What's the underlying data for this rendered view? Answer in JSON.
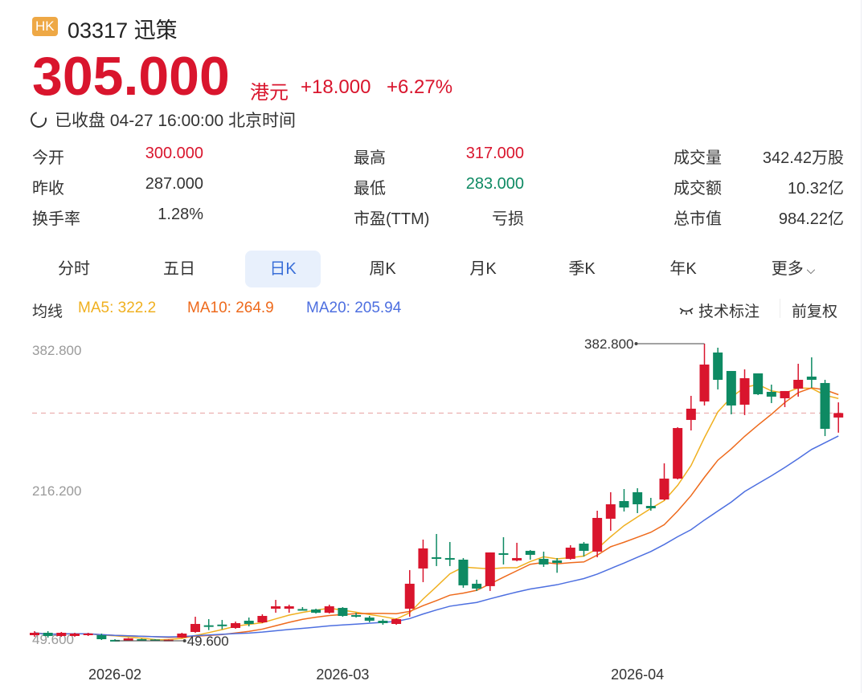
{
  "header": {
    "market_badge": "HK",
    "title": "03317 迅策",
    "price": "305.000",
    "currency": "港元",
    "change": "+18.000",
    "change_pct": "+6.27%",
    "status": "已收盘 04-27 16:00:00 北京时间"
  },
  "stats": [
    [
      {
        "label": "今开",
        "value": "300.000",
        "tone": "red"
      },
      {
        "label": "最高",
        "value": "317.000",
        "tone": "red"
      },
      {
        "label": "成交量",
        "value": "342.42万股",
        "tone": "dark"
      }
    ],
    [
      {
        "label": "昨收",
        "value": "287.000",
        "tone": "dark"
      },
      {
        "label": "最低",
        "value": "283.000",
        "tone": "green"
      },
      {
        "label": "成交额",
        "value": "10.32亿",
        "tone": "dark"
      }
    ],
    [
      {
        "label": "换手率",
        "value": "1.28%",
        "tone": "dark"
      },
      {
        "label": "市盈(TTM)",
        "value": "亏损",
        "tone": "dark"
      },
      {
        "label": "总市值",
        "value": "984.22亿",
        "tone": "dark"
      }
    ]
  ],
  "tabs": [
    "分时",
    "五日",
    "日K",
    "周K",
    "月K",
    "季K",
    "年K",
    "更多"
  ],
  "active_tab": "日K",
  "legend": {
    "title": "均线",
    "ma5": "MA5: 322.2",
    "ma10": "MA10: 264.9",
    "ma20": "MA20: 205.94",
    "annotate": "技术标注",
    "adjust": "前复权"
  },
  "colors": {
    "up": "#d9152d",
    "down": "#0e8a63",
    "ma5": "#f0b020",
    "ma10": "#ee6a1c",
    "ma20": "#4d6fe0"
  },
  "chart_data": {
    "type": "candlestick",
    "y_ticks": [
      "382.800",
      "216.200",
      "49.600"
    ],
    "ylim": [
      49.6,
      382.8
    ],
    "x_ticks": [
      "2026-02",
      "2026-03",
      "2026-04"
    ],
    "x_tick_index": [
      6,
      23,
      45
    ],
    "max_label": "382.800",
    "min_label": "49.600",
    "last_price": 305.0,
    "ohlc": [
      [
        55.9,
        58.6,
        60.4,
        54.1
      ],
      [
        58.6,
        55.0,
        60.4,
        53.2
      ],
      [
        55.0,
        58.6,
        59.5,
        54.1
      ],
      [
        55.0,
        57.7,
        58.6,
        54.1
      ],
      [
        55.9,
        57.7,
        58.6,
        55.0
      ],
      [
        55.9,
        51.4,
        57.7,
        50.5
      ],
      [
        50.6,
        50.5,
        51.4,
        50.0
      ],
      [
        50.0,
        52.3,
        52.8,
        49.8
      ],
      [
        51.4,
        50.5,
        51.9,
        50.0
      ],
      [
        51.0,
        50.3,
        51.4,
        49.9
      ],
      [
        49.9,
        50.8,
        51.2,
        49.6
      ],
      [
        53.2,
        57.7,
        58.6,
        52.8
      ],
      [
        59.5,
        68.5,
        76.6,
        58.6
      ],
      [
        67.0,
        66.5,
        73.9,
        61.6
      ],
      [
        67.8,
        67.4,
        73.0,
        62.5
      ],
      [
        64.0,
        69.4,
        71.2,
        63.1
      ],
      [
        72.1,
        68.5,
        75.7,
        65.8
      ],
      [
        70.3,
        77.5,
        79.3,
        69.4
      ],
      [
        85.6,
        88.3,
        95.5,
        81.1
      ],
      [
        85.6,
        88.3,
        90.1,
        81.1
      ],
      [
        85.2,
        84.7,
        87.4,
        83.8
      ],
      [
        84.7,
        81.1,
        85.6,
        80.2
      ],
      [
        81.1,
        88.3,
        90.1,
        80.2
      ],
      [
        86.5,
        77.5,
        87.4,
        76.6
      ],
      [
        78.4,
        76.6,
        81.1,
        75.7
      ],
      [
        75.7,
        72.1,
        77.5,
        70.3
      ],
      [
        72.1,
        69.4,
        73.9,
        67.6
      ],
      [
        68.5,
        73.9,
        74.8,
        67.6
      ],
      [
        85.6,
        113.6,
        128.9,
        76.6
      ],
      [
        130.7,
        153.2,
        163.1,
        115.4
      ],
      [
        143.3,
        141.5,
        169.4,
        133.4
      ],
      [
        142.4,
        141.5,
        160.4,
        133.4
      ],
      [
        140.6,
        111.8,
        142.4,
        109.1
      ],
      [
        113.6,
        108.2,
        118.1,
        105.5
      ],
      [
        110.9,
        148.7,
        148.7,
        105.5
      ],
      [
        147.8,
        146.9,
        165.8,
        135.2
      ],
      [
        139.7,
        142.4,
        159.5,
        138.8
      ],
      [
        150.5,
        146.0,
        151.4,
        140.6
      ],
      [
        141.5,
        135.2,
        149.6,
        132.5
      ],
      [
        139.7,
        137.0,
        142.4,
        125.9
      ],
      [
        141.5,
        154.1,
        156.8,
        140.6
      ],
      [
        158.6,
        150.5,
        160.4,
        144.2
      ],
      [
        149.6,
        187.4,
        195.5,
        143.3
      ],
      [
        186.5,
        202.7,
        216.2,
        173.0
      ],
      [
        206.3,
        199.1,
        219.8,
        194.6
      ],
      [
        216.2,
        202.7,
        220.7,
        192.8
      ],
      [
        200.9,
        198.2,
        209.9,
        195.5
      ],
      [
        208.1,
        231.5,
        248.6,
        207.2
      ],
      [
        231.5,
        288.2,
        289.1,
        230.6
      ],
      [
        297.3,
        309.9,
        324.3,
        285.5
      ],
      [
        318.0,
        359.4,
        382.8,
        313.5
      ],
      [
        372.9,
        342.3,
        378.3,
        331.5
      ],
      [
        352.2,
        313.5,
        352.2,
        303.6
      ],
      [
        314.4,
        344.1,
        354.0,
        302.7
      ],
      [
        349.5,
        326.1,
        349.5,
        325.2
      ],
      [
        328.8,
        323.4,
        336.9,
        316.2
      ],
      [
        321.6,
        329.7,
        329.7,
        311.7
      ],
      [
        332.4,
        342.3,
        360.3,
        323.4
      ],
      [
        345.9,
        342.3,
        367.5,
        333.3
      ],
      [
        338.7,
        287.3,
        342.3,
        279.2
      ],
      [
        300.0,
        305.0,
        317.0,
        283.0
      ]
    ]
  }
}
